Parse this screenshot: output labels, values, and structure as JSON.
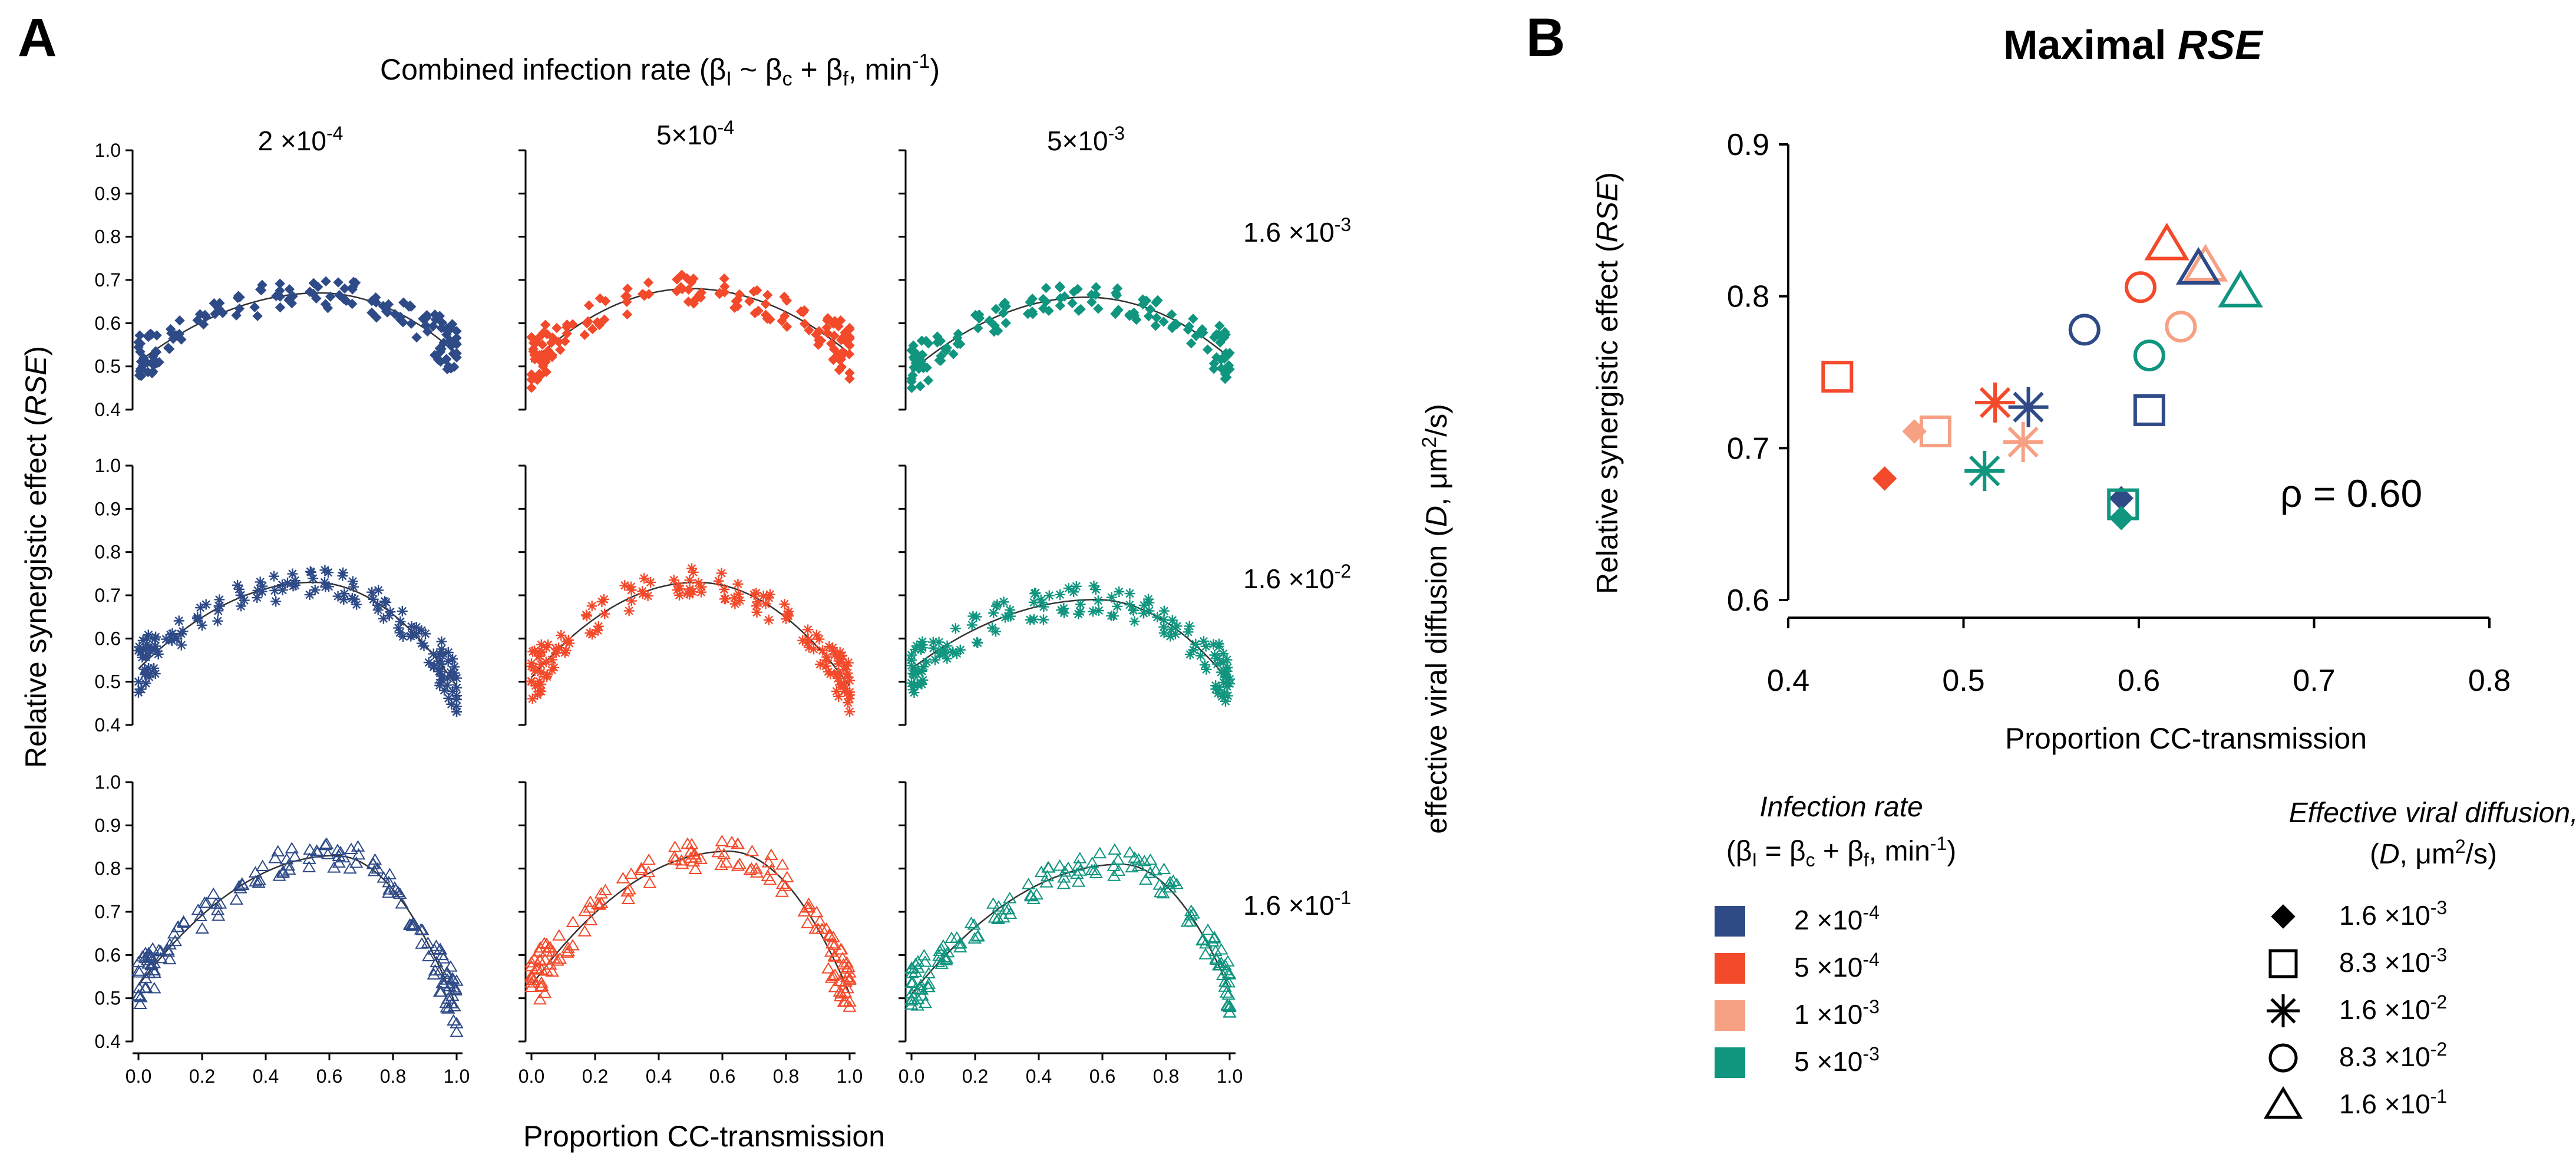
{
  "colors": {
    "blue": "#2e4a87",
    "red": "#f34a2b",
    "salmon": "#f7a184",
    "teal": "#10957f",
    "axis": "#000000",
    "curve": "#333333"
  },
  "panel_a": {
    "label": "A",
    "top_title": "Combined infection rate (βI ~ βc + βf , min-1)",
    "top_title_parts": {
      "pre": "Combined infection rate (",
      "beta": "β",
      "sub_i": "I",
      "tilde": " ~ β",
      "sub_c": "c",
      "plus": " + β",
      "sub_f": "f",
      "unit": ", min",
      "exp": "-1",
      "close": ")"
    },
    "column_headers": [
      {
        "base": "2 ×10",
        "exp": "-4"
      },
      {
        "base": "5×10",
        "exp": "-4"
      },
      {
        "base": "5×10",
        "exp": "-3"
      }
    ],
    "row_labels": [
      {
        "base": "1.6 ×10",
        "exp": "-3"
      },
      {
        "base": "1.6 ×10",
        "exp": "-2"
      },
      {
        "base": "1.6 ×10",
        "exp": "-1"
      }
    ],
    "ylabel": {
      "pre": "Relative synergistic effect (",
      "ital": "RSE",
      "post": ")"
    },
    "right_label": {
      "pre": "effective viral diffusion (",
      "ital": "D",
      "post": ", μm",
      "exp": "2",
      "post2": "/s)"
    },
    "xlabel": "Proportion CC-transmission",
    "x_ticks": [
      "0.0",
      "0.2",
      "0.4",
      "0.6",
      "0.8",
      "1.0"
    ],
    "y_ticks": [
      "0.4",
      "0.5",
      "0.6",
      "0.7",
      "0.8",
      "0.9",
      "1.0"
    ]
  },
  "chart_data": [
    {
      "id": "A",
      "type": "scatter",
      "title": "Combined infection rate (βI ~ βc + βf , min-1)",
      "xlabel": "Proportion CC-transmission",
      "ylabel": "Relative synergistic effect (RSE)",
      "xlim": [
        0,
        1
      ],
      "ylim": [
        0.4,
        1.0
      ],
      "rows": [
        "1.6 ×10-3",
        "1.6 ×10-2",
        "1.6 ×10-1"
      ],
      "columns": [
        "2 ×10-4",
        "5×10-4",
        "5×10-3"
      ],
      "marker_by_row": [
        "diamond",
        "star",
        "triangle"
      ],
      "color_by_column": [
        "blue",
        "red",
        "teal"
      ],
      "fits": [
        [
          {
            "peak_x": 0.57,
            "peak_y": 0.67,
            "y0": 0.51,
            "y1": 0.53
          },
          {
            "peak_x": 0.5,
            "peak_y": 0.68,
            "y0": 0.51,
            "y1": 0.53
          },
          {
            "peak_x": 0.55,
            "peak_y": 0.66,
            "y0": 0.49,
            "y1": 0.52
          }
        ],
        [
          {
            "peak_x": 0.55,
            "peak_y": 0.73,
            "y0": 0.53,
            "y1": 0.49
          },
          {
            "peak_x": 0.52,
            "peak_y": 0.73,
            "y0": 0.51,
            "y1": 0.49
          },
          {
            "peak_x": 0.58,
            "peak_y": 0.69,
            "y0": 0.53,
            "y1": 0.5
          }
        ],
        [
          {
            "peak_x": 0.62,
            "peak_y": 0.83,
            "y0": 0.53,
            "y1": 0.48
          },
          {
            "peak_x": 0.62,
            "peak_y": 0.84,
            "y0": 0.53,
            "y1": 0.51
          },
          {
            "peak_x": 0.66,
            "peak_y": 0.81,
            "y0": 0.51,
            "y1": 0.52
          }
        ]
      ],
      "x_clusters": [
        [
          0.0,
          0.02,
          0.04,
          0.06,
          0.1,
          0.13,
          0.2,
          0.25,
          0.32,
          0.38,
          0.44,
          0.48,
          0.55,
          0.6,
          0.64,
          0.68,
          0.74,
          0.78,
          0.82,
          0.86,
          0.9,
          0.94,
          0.96,
          0.98,
          1.0
        ],
        [
          0.0,
          0.02,
          0.04,
          0.06,
          0.08,
          0.12,
          0.18,
          0.22,
          0.3,
          0.36,
          0.46,
          0.5,
          0.52,
          0.6,
          0.64,
          0.7,
          0.74,
          0.8,
          0.86,
          0.9,
          0.94,
          0.96,
          0.98,
          1.0
        ],
        [
          0.0,
          0.02,
          0.04,
          0.08,
          0.1,
          0.14,
          0.2,
          0.26,
          0.3,
          0.38,
          0.42,
          0.48,
          0.52,
          0.58,
          0.64,
          0.7,
          0.74,
          0.78,
          0.82,
          0.88,
          0.92,
          0.96,
          0.98,
          1.0
        ]
      ]
    },
    {
      "id": "B",
      "type": "scatter",
      "title": "Maximal RSE",
      "xlabel": "Proportion CC-transmission",
      "ylabel": "Relative synergistic effect (RSE)",
      "xlim": [
        0.4,
        0.8
      ],
      "ylim": [
        0.6,
        0.9
      ],
      "x_ticks": [
        "0.4",
        "0.5",
        "0.6",
        "0.7",
        "0.8"
      ],
      "y_ticks": [
        "0.6",
        "0.7",
        "0.8",
        "0.9"
      ],
      "annotation": "ρ = 0.60",
      "points": [
        {
          "color": "red",
          "marker": "diamond",
          "x": 0.455,
          "y": 0.68
        },
        {
          "color": "salmon",
          "marker": "diamond",
          "x": 0.472,
          "y": 0.711
        },
        {
          "color": "blue",
          "marker": "diamond",
          "x": 0.59,
          "y": 0.667
        },
        {
          "color": "teal",
          "marker": "diamond",
          "x": 0.59,
          "y": 0.654
        },
        {
          "color": "red",
          "marker": "square",
          "x": 0.428,
          "y": 0.747
        },
        {
          "color": "salmon",
          "marker": "square",
          "x": 0.484,
          "y": 0.711
        },
        {
          "color": "blue",
          "marker": "square",
          "x": 0.606,
          "y": 0.725
        },
        {
          "color": "teal",
          "marker": "square",
          "x": 0.591,
          "y": 0.663
        },
        {
          "color": "red",
          "marker": "star",
          "x": 0.518,
          "y": 0.73
        },
        {
          "color": "blue",
          "marker": "star",
          "x": 0.537,
          "y": 0.727
        },
        {
          "color": "salmon",
          "marker": "star",
          "x": 0.534,
          "y": 0.704
        },
        {
          "color": "teal",
          "marker": "star",
          "x": 0.512,
          "y": 0.685
        },
        {
          "color": "blue",
          "marker": "circle",
          "x": 0.569,
          "y": 0.778
        },
        {
          "color": "red",
          "marker": "circle",
          "x": 0.601,
          "y": 0.806
        },
        {
          "color": "salmon",
          "marker": "circle",
          "x": 0.624,
          "y": 0.78
        },
        {
          "color": "teal",
          "marker": "circle",
          "x": 0.606,
          "y": 0.761
        },
        {
          "color": "red",
          "marker": "triangle",
          "x": 0.616,
          "y": 0.834
        },
        {
          "color": "salmon",
          "marker": "triangle",
          "x": 0.638,
          "y": 0.82
        },
        {
          "color": "blue",
          "marker": "triangle",
          "x": 0.634,
          "y": 0.818
        },
        {
          "color": "teal",
          "marker": "triangle",
          "x": 0.658,
          "y": 0.803
        }
      ]
    }
  ],
  "panel_b": {
    "label": "B",
    "title_pre": "Maximal ",
    "title_ital": "RSE",
    "ylabel": {
      "pre": "Relative synergistic effect (",
      "ital": "RSE",
      "post": ")"
    },
    "xlabel": "Proportion CC-transmission",
    "annotation": "ρ = 0.60",
    "x_ticks": [
      "0.4",
      "0.5",
      "0.6",
      "0.7",
      "0.8"
    ],
    "y_ticks": [
      "0.6",
      "0.7",
      "0.8",
      "0.9"
    ]
  },
  "legend_infection": {
    "title": "Infection rate",
    "subtitle": {
      "pre": "(β",
      "sub_i": "I",
      "mid1": " = β",
      "sub_c": "c",
      "mid2": " + β",
      "sub_f": "f",
      "post": ", min",
      "exp": "-1",
      "close": ")"
    },
    "items": [
      {
        "color": "blue",
        "base": "2 ×10",
        "exp": "-4"
      },
      {
        "color": "red",
        "base": "5 ×10",
        "exp": "-4"
      },
      {
        "color": "salmon",
        "base": "1 ×10",
        "exp": "-3"
      },
      {
        "color": "teal",
        "base": "5 ×10",
        "exp": "-3"
      }
    ]
  },
  "legend_diffusion": {
    "title": "Effective viral diffusion,",
    "subtitle": {
      "pre": "(",
      "ital": "D",
      "post": ", μm",
      "exp": "2",
      "post2": "/s)"
    },
    "items": [
      {
        "marker": "diamond",
        "base": "1.6 ×10",
        "exp": "-3"
      },
      {
        "marker": "square",
        "base": "8.3 ×10",
        "exp": "-3"
      },
      {
        "marker": "star",
        "base": "1.6 ×10",
        "exp": "-2"
      },
      {
        "marker": "circle",
        "base": "8.3 ×10",
        "exp": "-2"
      },
      {
        "marker": "triangle",
        "base": "1.6 ×10",
        "exp": "-1"
      }
    ]
  }
}
